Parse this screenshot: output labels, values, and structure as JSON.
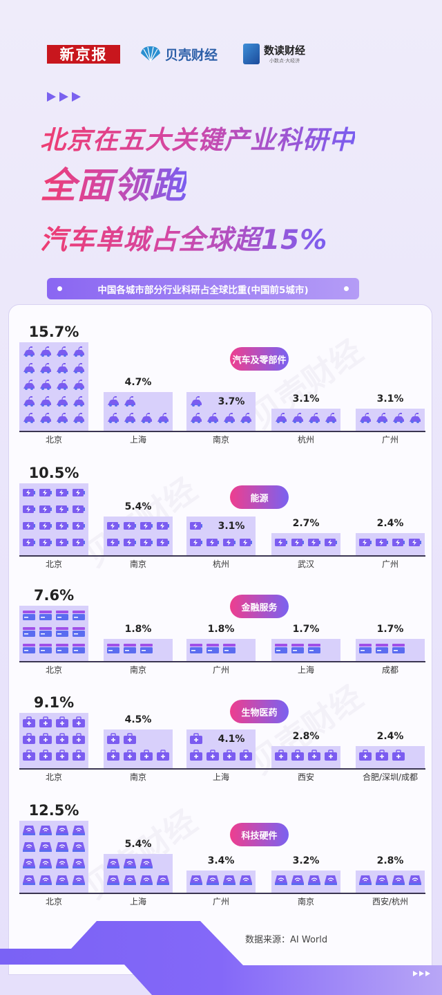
{
  "header": {
    "logo_xjb": "新京报",
    "logo_beike": "贝壳财经",
    "logo_shudu": "数读财经",
    "logo_shudu_slogan": "小数点·大经济",
    "title_line1": "北京在五大关键产业科研中",
    "title_line2": "全面领跑",
    "title_line3": "汽车单城占全球超15%",
    "subtitle": "中国各城市部分行业科研占全球比重(中国前5城市)"
  },
  "watermark": "贝壳财经",
  "colors": {
    "accent_pink": "#ee3d72",
    "accent_purple": "#7a62f0",
    "bar_fill": "#d8d0fb",
    "icon": "#7b5cf0"
  },
  "chart_data": [
    {
      "type": "bar",
      "title": "汽车及零部件",
      "icon": "car-icon",
      "unit": "%",
      "categories": [
        "北京",
        "上海",
        "南京",
        "杭州",
        "广州"
      ],
      "values": [
        15.7,
        4.7,
        3.7,
        3.1,
        3.1
      ],
      "icon_count": [
        20,
        6,
        5,
        4,
        4
      ]
    },
    {
      "type": "bar",
      "title": "能源",
      "icon": "battery-icon",
      "unit": "%",
      "categories": [
        "北京",
        "南京",
        "杭州",
        "武汉",
        "广州"
      ],
      "values": [
        10.5,
        5.4,
        3.1,
        2.7,
        2.4
      ],
      "icon_count": [
        16,
        8,
        5,
        4,
        4
      ]
    },
    {
      "type": "bar",
      "title": "金融服务",
      "icon": "card-icon",
      "unit": "%",
      "categories": [
        "北京",
        "南京",
        "广州",
        "上海",
        "成都"
      ],
      "values": [
        7.6,
        1.8,
        1.8,
        1.7,
        1.7
      ],
      "icon_count": [
        12,
        3,
        3,
        3,
        3
      ]
    },
    {
      "type": "bar",
      "title": "生物医药",
      "icon": "medkit-icon",
      "unit": "%",
      "categories": [
        "北京",
        "南京",
        "上海",
        "西安",
        "合肥/深圳/成都"
      ],
      "values": [
        9.1,
        4.5,
        4.1,
        2.8,
        2.4
      ],
      "icon_count": [
        12,
        6,
        5,
        4,
        3
      ]
    },
    {
      "type": "bar",
      "title": "科技硬件",
      "icon": "router-icon",
      "unit": "%",
      "categories": [
        "北京",
        "上海",
        "广州",
        "南京",
        "西安/杭州"
      ],
      "values": [
        12.5,
        5.4,
        3.4,
        3.2,
        2.8
      ],
      "icon_count": [
        16,
        7,
        4,
        4,
        4
      ]
    }
  ],
  "footer": {
    "source": "数据来源：AI World"
  }
}
